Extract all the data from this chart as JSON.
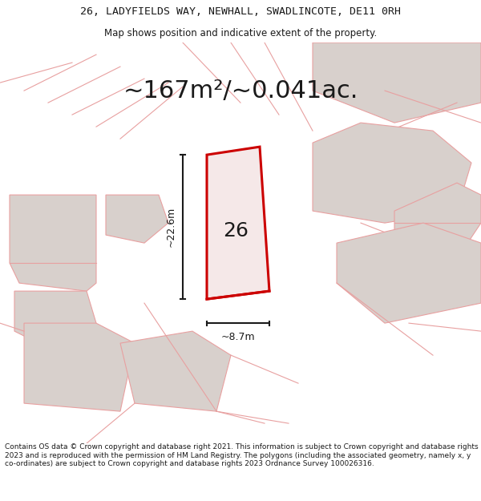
{
  "title_line1": "26, LADYFIELDS WAY, NEWHALL, SWADLINCOTE, DE11 0RH",
  "title_line2": "Map shows position and indicative extent of the property.",
  "area_text": "~167m²/~0.041ac.",
  "label_26": "26",
  "dim_height": "~22.6m",
  "dim_width": "~8.7m",
  "footer_text": "Contains OS data © Crown copyright and database right 2021. This information is subject to Crown copyright and database rights 2023 and is reproduced with the permission of HM Land Registry. The polygons (including the associated geometry, namely x, y co-ordinates) are subject to Crown copyright and database rights 2023 Ordnance Survey 100026316.",
  "bg_color": "#f5f0f0",
  "map_bg": "#f0ece8",
  "building_fill": "#d8d0cc",
  "road_line_color": "#e8a0a0",
  "highlight_color": "#cc0000",
  "highlight_fill": "#f5e8e8",
  "dim_line_color": "#1a1a1a",
  "text_color": "#1a1a1a",
  "title_fontsize": 9.5,
  "subtitle_fontsize": 8.5,
  "area_fontsize": 22,
  "label_fontsize": 18,
  "dim_fontsize": 9,
  "footer_fontsize": 6.5
}
